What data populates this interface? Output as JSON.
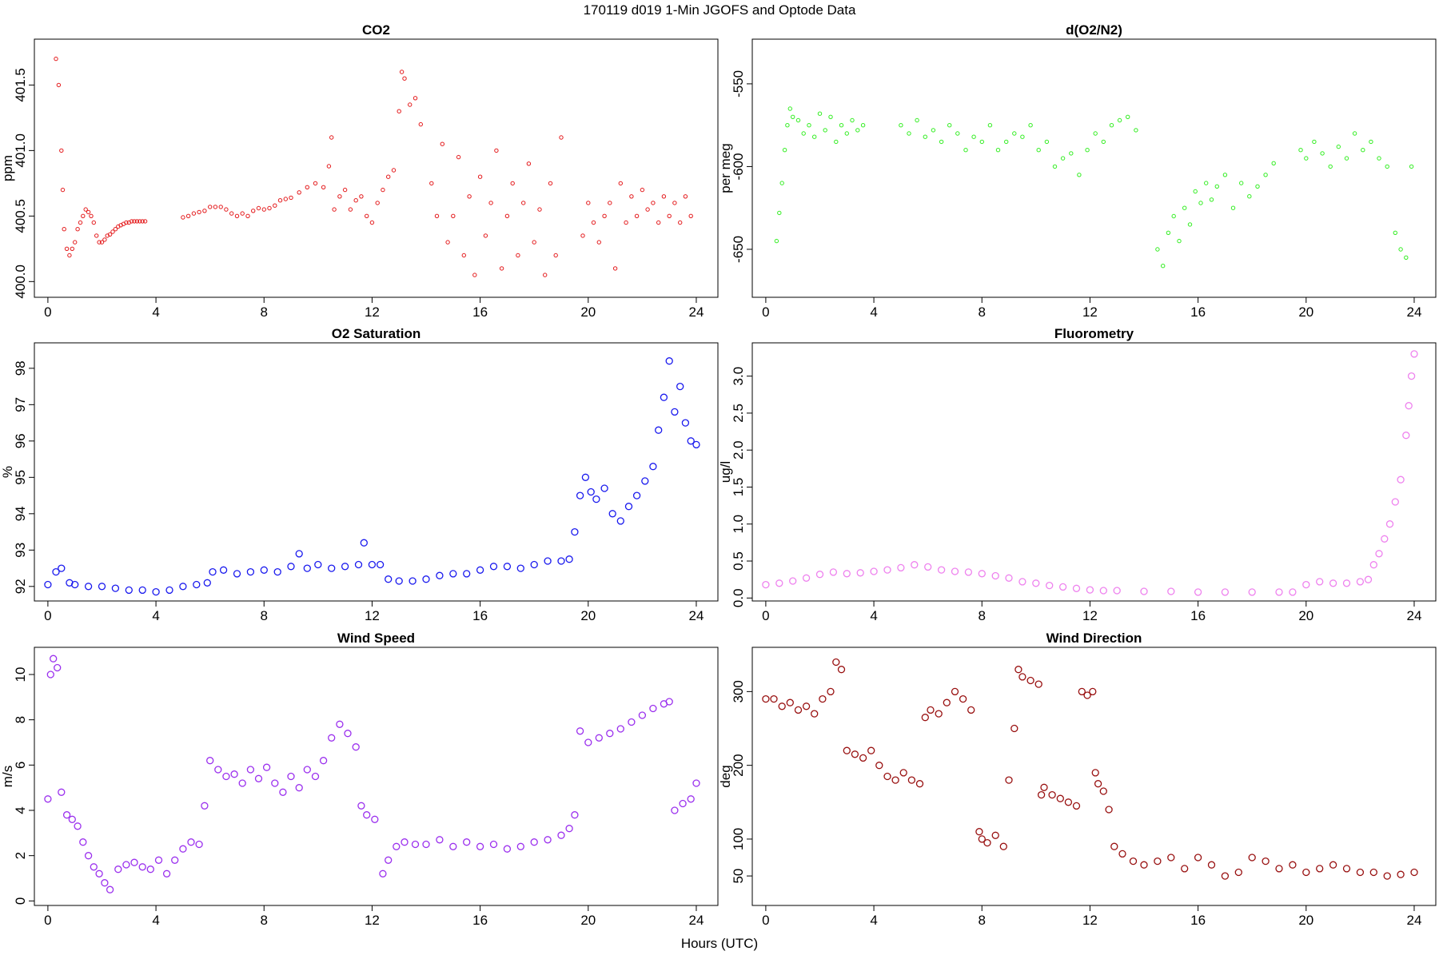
{
  "title": "170119   d019   1-Min  JGOFS and Optode Data",
  "xlabel": "Hours (UTC)",
  "chart_data": [
    {
      "type": "scatter",
      "title": "CO2",
      "ylabel": "ppm",
      "color": "#e41a1c",
      "marker_size": "small",
      "xlim": [
        -0.5,
        24.8
      ],
      "ylim": [
        399.88,
        401.85
      ],
      "xticks": [
        0,
        4,
        8,
        12,
        16,
        20,
        24
      ],
      "yticks": [
        400.0,
        400.5,
        401.0,
        401.5
      ],
      "ytick_labels": [
        "400.0",
        "400.5",
        "401.0",
        "401.5"
      ],
      "x": [
        0.3,
        0.4,
        0.5,
        0.55,
        0.6,
        0.7,
        0.8,
        0.9,
        1.0,
        1.1,
        1.2,
        1.3,
        1.4,
        1.5,
        1.6,
        1.7,
        1.8,
        1.9,
        2.0,
        2.1,
        2.2,
        2.3,
        2.4,
        2.5,
        2.6,
        2.7,
        2.8,
        2.9,
        3.0,
        3.1,
        3.2,
        3.3,
        3.4,
        3.5,
        3.6,
        5.0,
        5.2,
        5.4,
        5.6,
        5.8,
        6.0,
        6.2,
        6.4,
        6.6,
        6.8,
        7.0,
        7.2,
        7.4,
        7.6,
        7.8,
        8.0,
        8.2,
        8.4,
        8.6,
        8.8,
        9.0,
        9.3,
        9.6,
        9.9,
        10.2,
        10.4,
        10.5,
        10.6,
        10.8,
        11.0,
        11.2,
        11.4,
        11.6,
        11.8,
        12.0,
        12.2,
        12.4,
        12.6,
        12.8,
        13.0,
        13.1,
        13.2,
        13.4,
        13.6,
        13.8,
        14.2,
        14.4,
        14.6,
        14.8,
        15.0,
        15.2,
        15.4,
        15.6,
        15.8,
        16.0,
        16.2,
        16.4,
        16.6,
        16.8,
        17.0,
        17.2,
        17.4,
        17.6,
        17.8,
        18.0,
        18.2,
        18.4,
        18.6,
        18.8,
        19.0,
        19.8,
        20.0,
        20.2,
        20.4,
        20.6,
        20.8,
        21.0,
        21.2,
        21.4,
        21.6,
        21.8,
        22.0,
        22.2,
        22.4,
        22.6,
        22.8,
        23.0,
        23.2,
        23.4,
        23.6,
        23.8
      ],
      "y": [
        401.7,
        401.5,
        401.0,
        400.7,
        400.4,
        400.25,
        400.2,
        400.25,
        400.3,
        400.4,
        400.45,
        400.5,
        400.55,
        400.53,
        400.5,
        400.45,
        400.35,
        400.3,
        400.3,
        400.32,
        400.35,
        400.36,
        400.38,
        400.4,
        400.42,
        400.43,
        400.44,
        400.45,
        400.45,
        400.46,
        400.46,
        400.46,
        400.46,
        400.46,
        400.46,
        400.49,
        400.5,
        400.52,
        400.53,
        400.54,
        400.57,
        400.57,
        400.57,
        400.55,
        400.52,
        400.5,
        400.52,
        400.5,
        400.54,
        400.56,
        400.55,
        400.56,
        400.58,
        400.62,
        400.63,
        400.64,
        400.68,
        400.72,
        400.75,
        400.72,
        400.88,
        401.1,
        400.55,
        400.65,
        400.7,
        400.55,
        400.62,
        400.65,
        400.5,
        400.45,
        400.6,
        400.7,
        400.8,
        400.85,
        401.3,
        401.6,
        401.55,
        401.35,
        401.4,
        401.2,
        400.75,
        400.5,
        401.05,
        400.3,
        400.5,
        400.95,
        400.2,
        400.65,
        400.05,
        400.8,
        400.35,
        400.6,
        401.0,
        400.1,
        400.5,
        400.75,
        400.2,
        400.6,
        400.9,
        400.3,
        400.55,
        400.05,
        400.75,
        400.2,
        401.1,
        400.35,
        400.6,
        400.45,
        400.3,
        400.5,
        400.6,
        400.1,
        400.75,
        400.45,
        400.65,
        400.5,
        400.7,
        400.55,
        400.6,
        400.45,
        400.65,
        400.5,
        400.6,
        400.45,
        400.65,
        400.5
      ]
    },
    {
      "type": "scatter",
      "title": "d(O2/N2)",
      "ylabel": "per meg",
      "color": "#33ee22",
      "marker_size": "small",
      "xlim": [
        -0.5,
        24.8
      ],
      "ylim": [
        -679,
        -523
      ],
      "xticks": [
        0,
        4,
        8,
        12,
        16,
        20,
        24
      ],
      "yticks": [
        -550,
        -600,
        -650
      ],
      "ytick_labels": [
        "-550",
        "-600",
        "-650"
      ],
      "x": [
        0.4,
        0.5,
        0.6,
        0.7,
        0.8,
        0.9,
        1.0,
        1.2,
        1.4,
        1.6,
        1.8,
        2.0,
        2.2,
        2.4,
        2.6,
        2.8,
        3.0,
        3.2,
        3.4,
        3.6,
        5.0,
        5.3,
        5.6,
        5.9,
        6.2,
        6.5,
        6.8,
        7.1,
        7.4,
        7.7,
        8.0,
        8.3,
        8.6,
        8.9,
        9.2,
        9.5,
        9.8,
        10.1,
        10.4,
        10.7,
        11.0,
        11.3,
        11.6,
        11.9,
        12.2,
        12.5,
        12.8,
        13.1,
        13.4,
        13.7,
        14.5,
        14.7,
        14.9,
        15.1,
        15.3,
        15.5,
        15.7,
        15.9,
        16.1,
        16.3,
        16.5,
        16.7,
        17.0,
        17.3,
        17.6,
        17.9,
        18.2,
        18.5,
        18.8,
        19.8,
        20.0,
        20.3,
        20.6,
        20.9,
        21.2,
        21.5,
        21.8,
        22.1,
        22.4,
        22.7,
        23.0,
        23.3,
        23.5,
        23.7,
        23.9
      ],
      "y": [
        -645,
        -628,
        -610,
        -590,
        -575,
        -565,
        -570,
        -572,
        -580,
        -575,
        -582,
        -568,
        -578,
        -570,
        -585,
        -575,
        -580,
        -572,
        -578,
        -575,
        -575,
        -580,
        -572,
        -582,
        -578,
        -585,
        -575,
        -580,
        -590,
        -582,
        -585,
        -575,
        -590,
        -585,
        -580,
        -582,
        -575,
        -590,
        -585,
        -600,
        -595,
        -592,
        -605,
        -590,
        -580,
        -585,
        -575,
        -572,
        -570,
        -578,
        -650,
        -660,
        -640,
        -630,
        -645,
        -625,
        -635,
        -615,
        -622,
        -610,
        -620,
        -612,
        -605,
        -625,
        -610,
        -618,
        -612,
        -605,
        -598,
        -590,
        -595,
        -585,
        -592,
        -600,
        -588,
        -595,
        -580,
        -590,
        -585,
        -595,
        -600,
        -640,
        -650,
        -655,
        -600
      ]
    },
    {
      "type": "scatter",
      "title": "O2 Saturation",
      "ylabel": "%",
      "color": "#1a1aee",
      "marker_size": "large",
      "xlim": [
        -0.5,
        24.8
      ],
      "ylim": [
        91.6,
        98.7
      ],
      "xticks": [
        0,
        4,
        8,
        12,
        16,
        20,
        24
      ],
      "yticks": [
        92,
        93,
        94,
        95,
        96,
        97,
        98
      ],
      "ytick_labels": [
        "92",
        "93",
        "94",
        "95",
        "96",
        "97",
        "98"
      ],
      "x": [
        0.0,
        0.3,
        0.5,
        0.8,
        1.0,
        1.5,
        2.0,
        2.5,
        3.0,
        3.5,
        4.0,
        4.5,
        5.0,
        5.5,
        5.9,
        6.1,
        6.5,
        7.0,
        7.5,
        8.0,
        8.5,
        9.0,
        9.3,
        9.6,
        10.0,
        10.5,
        11.0,
        11.5,
        11.7,
        12.0,
        12.3,
        12.6,
        13.0,
        13.5,
        14.0,
        14.5,
        15.0,
        15.5,
        16.0,
        16.5,
        17.0,
        17.5,
        18.0,
        18.5,
        19.0,
        19.3,
        19.5,
        19.7,
        19.9,
        20.1,
        20.3,
        20.6,
        20.9,
        21.2,
        21.5,
        21.8,
        22.1,
        22.4,
        22.6,
        22.8,
        23.0,
        23.2,
        23.4,
        23.6,
        23.8,
        24.0
      ],
      "y": [
        92.05,
        92.4,
        92.5,
        92.1,
        92.05,
        92.0,
        92.0,
        91.95,
        91.9,
        91.9,
        91.85,
        91.9,
        92.0,
        92.05,
        92.1,
        92.4,
        92.45,
        92.35,
        92.4,
        92.45,
        92.4,
        92.55,
        92.9,
        92.5,
        92.6,
        92.5,
        92.55,
        92.6,
        93.2,
        92.6,
        92.6,
        92.2,
        92.15,
        92.15,
        92.2,
        92.3,
        92.35,
        92.35,
        92.45,
        92.55,
        92.55,
        92.5,
        92.6,
        92.7,
        92.7,
        92.75,
        93.5,
        94.5,
        95.0,
        94.6,
        94.4,
        94.7,
        94.0,
        93.8,
        94.2,
        94.5,
        94.9,
        95.3,
        96.3,
        97.2,
        98.2,
        96.8,
        97.5,
        96.5,
        96.0,
        95.9
      ]
    },
    {
      "type": "scatter",
      "title": "Fluorometry",
      "ylabel": "ug/l",
      "color": "#ee82ee",
      "marker_size": "large",
      "xlim": [
        -0.5,
        24.8
      ],
      "ylim": [
        -0.04,
        3.45
      ],
      "xticks": [
        0,
        4,
        8,
        12,
        16,
        20,
        24
      ],
      "yticks": [
        0.0,
        0.5,
        1.0,
        1.5,
        2.0,
        2.5,
        3.0
      ],
      "ytick_labels": [
        "0.0",
        "0.5",
        "1.0",
        "1.5",
        "2.0",
        "2.5",
        "3.0"
      ],
      "x": [
        0.0,
        0.5,
        1.0,
        1.5,
        2.0,
        2.5,
        3.0,
        3.5,
        4.0,
        4.5,
        5.0,
        5.5,
        6.0,
        6.5,
        7.0,
        7.5,
        8.0,
        8.5,
        9.0,
        9.5,
        10.0,
        10.5,
        11.0,
        11.5,
        12.0,
        12.5,
        13.0,
        14.0,
        15.0,
        16.0,
        17.0,
        18.0,
        19.0,
        19.5,
        20.0,
        20.5,
        21.0,
        21.5,
        22.0,
        22.3,
        22.5,
        22.7,
        22.9,
        23.1,
        23.3,
        23.5,
        23.7,
        23.8,
        23.9,
        24.0
      ],
      "y": [
        0.18,
        0.2,
        0.23,
        0.27,
        0.32,
        0.35,
        0.33,
        0.34,
        0.36,
        0.38,
        0.41,
        0.45,
        0.42,
        0.38,
        0.36,
        0.35,
        0.33,
        0.3,
        0.27,
        0.22,
        0.2,
        0.17,
        0.15,
        0.13,
        0.11,
        0.1,
        0.1,
        0.09,
        0.09,
        0.08,
        0.08,
        0.08,
        0.08,
        0.08,
        0.18,
        0.22,
        0.2,
        0.2,
        0.22,
        0.25,
        0.45,
        0.6,
        0.8,
        1.0,
        1.3,
        1.6,
        2.2,
        2.6,
        3.0,
        3.3
      ]
    },
    {
      "type": "scatter",
      "title": "Wind Speed",
      "ylabel": "m/s",
      "color": "#9b30ee",
      "marker_size": "large",
      "xlim": [
        -0.5,
        24.8
      ],
      "ylim": [
        -0.2,
        11.2
      ],
      "xticks": [
        0,
        4,
        8,
        12,
        16,
        20,
        24
      ],
      "yticks": [
        0,
        2,
        4,
        6,
        8,
        10
      ],
      "ytick_labels": [
        "0",
        "2",
        "4",
        "6",
        "8",
        "10"
      ],
      "x": [
        0.0,
        0.1,
        0.2,
        0.35,
        0.5,
        0.7,
        0.9,
        1.1,
        1.3,
        1.5,
        1.7,
        1.9,
        2.1,
        2.3,
        2.6,
        2.9,
        3.2,
        3.5,
        3.8,
        4.1,
        4.4,
        4.7,
        5.0,
        5.3,
        5.6,
        5.8,
        6.0,
        6.3,
        6.6,
        6.9,
        7.2,
        7.5,
        7.8,
        8.1,
        8.4,
        8.7,
        9.0,
        9.3,
        9.6,
        9.9,
        10.2,
        10.5,
        10.8,
        11.1,
        11.4,
        11.6,
        11.8,
        12.1,
        12.4,
        12.6,
        12.9,
        13.2,
        13.6,
        14.0,
        14.5,
        15.0,
        15.5,
        16.0,
        16.5,
        17.0,
        17.5,
        18.0,
        18.5,
        19.0,
        19.3,
        19.5,
        19.7,
        20.0,
        20.4,
        20.8,
        21.2,
        21.6,
        22.0,
        22.4,
        22.8,
        23.0,
        23.2,
        23.5,
        23.8,
        24.0
      ],
      "y": [
        4.5,
        10.0,
        10.7,
        10.3,
        4.8,
        3.8,
        3.6,
        3.3,
        2.6,
        2.0,
        1.5,
        1.2,
        0.8,
        0.5,
        1.4,
        1.6,
        1.7,
        1.5,
        1.4,
        1.8,
        1.2,
        1.8,
        2.3,
        2.6,
        2.5,
        4.2,
        6.2,
        5.8,
        5.5,
        5.6,
        5.2,
        5.8,
        5.4,
        5.9,
        5.2,
        4.8,
        5.5,
        5.0,
        5.8,
        5.5,
        6.2,
        7.2,
        7.8,
        7.4,
        6.8,
        4.2,
        3.8,
        3.6,
        1.2,
        1.8,
        2.4,
        2.6,
        2.5,
        2.5,
        2.7,
        2.4,
        2.6,
        2.4,
        2.5,
        2.3,
        2.4,
        2.6,
        2.7,
        2.9,
        3.2,
        3.8,
        7.5,
        7.0,
        7.2,
        7.4,
        7.6,
        7.9,
        8.2,
        8.5,
        8.7,
        8.8,
        4.0,
        4.3,
        4.5,
        5.2
      ]
    },
    {
      "type": "scatter",
      "title": "Wind Direction",
      "ylabel": "deg",
      "color": "#991111",
      "marker_size": "large",
      "xlim": [
        -0.5,
        24.8
      ],
      "ylim": [
        10,
        360
      ],
      "xticks": [
        0,
        4,
        8,
        12,
        16,
        20,
        24
      ],
      "yticks": [
        50,
        100,
        200,
        300
      ],
      "ytick_labels": [
        "50",
        "100",
        "200",
        "300"
      ],
      "x": [
        0.0,
        0.3,
        0.6,
        0.9,
        1.2,
        1.5,
        1.8,
        2.1,
        2.4,
        2.6,
        2.8,
        3.0,
        3.3,
        3.6,
        3.9,
        4.2,
        4.5,
        4.8,
        5.1,
        5.4,
        5.7,
        5.9,
        6.1,
        6.4,
        6.7,
        7.0,
        7.3,
        7.6,
        7.9,
        8.0,
        8.2,
        8.5,
        8.8,
        9.0,
        9.2,
        9.35,
        9.5,
        9.8,
        10.1,
        10.2,
        10.3,
        10.6,
        10.9,
        11.2,
        11.5,
        11.7,
        11.9,
        12.1,
        12.2,
        12.3,
        12.5,
        12.7,
        12.9,
        13.2,
        13.6,
        14.0,
        14.5,
        15.0,
        15.5,
        16.0,
        16.5,
        17.0,
        17.5,
        18.0,
        18.5,
        19.0,
        19.5,
        20.0,
        20.5,
        21.0,
        21.5,
        22.0,
        22.5,
        23.0,
        23.5,
        24.0
      ],
      "y": [
        290,
        290,
        280,
        285,
        275,
        280,
        270,
        290,
        300,
        340,
        330,
        220,
        215,
        210,
        220,
        200,
        185,
        180,
        190,
        180,
        175,
        265,
        275,
        270,
        285,
        300,
        290,
        275,
        110,
        100,
        95,
        105,
        90,
        180,
        250,
        330,
        320,
        315,
        310,
        160,
        170,
        160,
        155,
        150,
        145,
        300,
        295,
        300,
        190,
        175,
        165,
        140,
        90,
        80,
        70,
        65,
        70,
        75,
        60,
        75,
        65,
        50,
        55,
        75,
        70,
        60,
        65,
        55,
        60,
        65,
        60,
        55,
        55,
        50,
        52,
        55
      ]
    }
  ]
}
